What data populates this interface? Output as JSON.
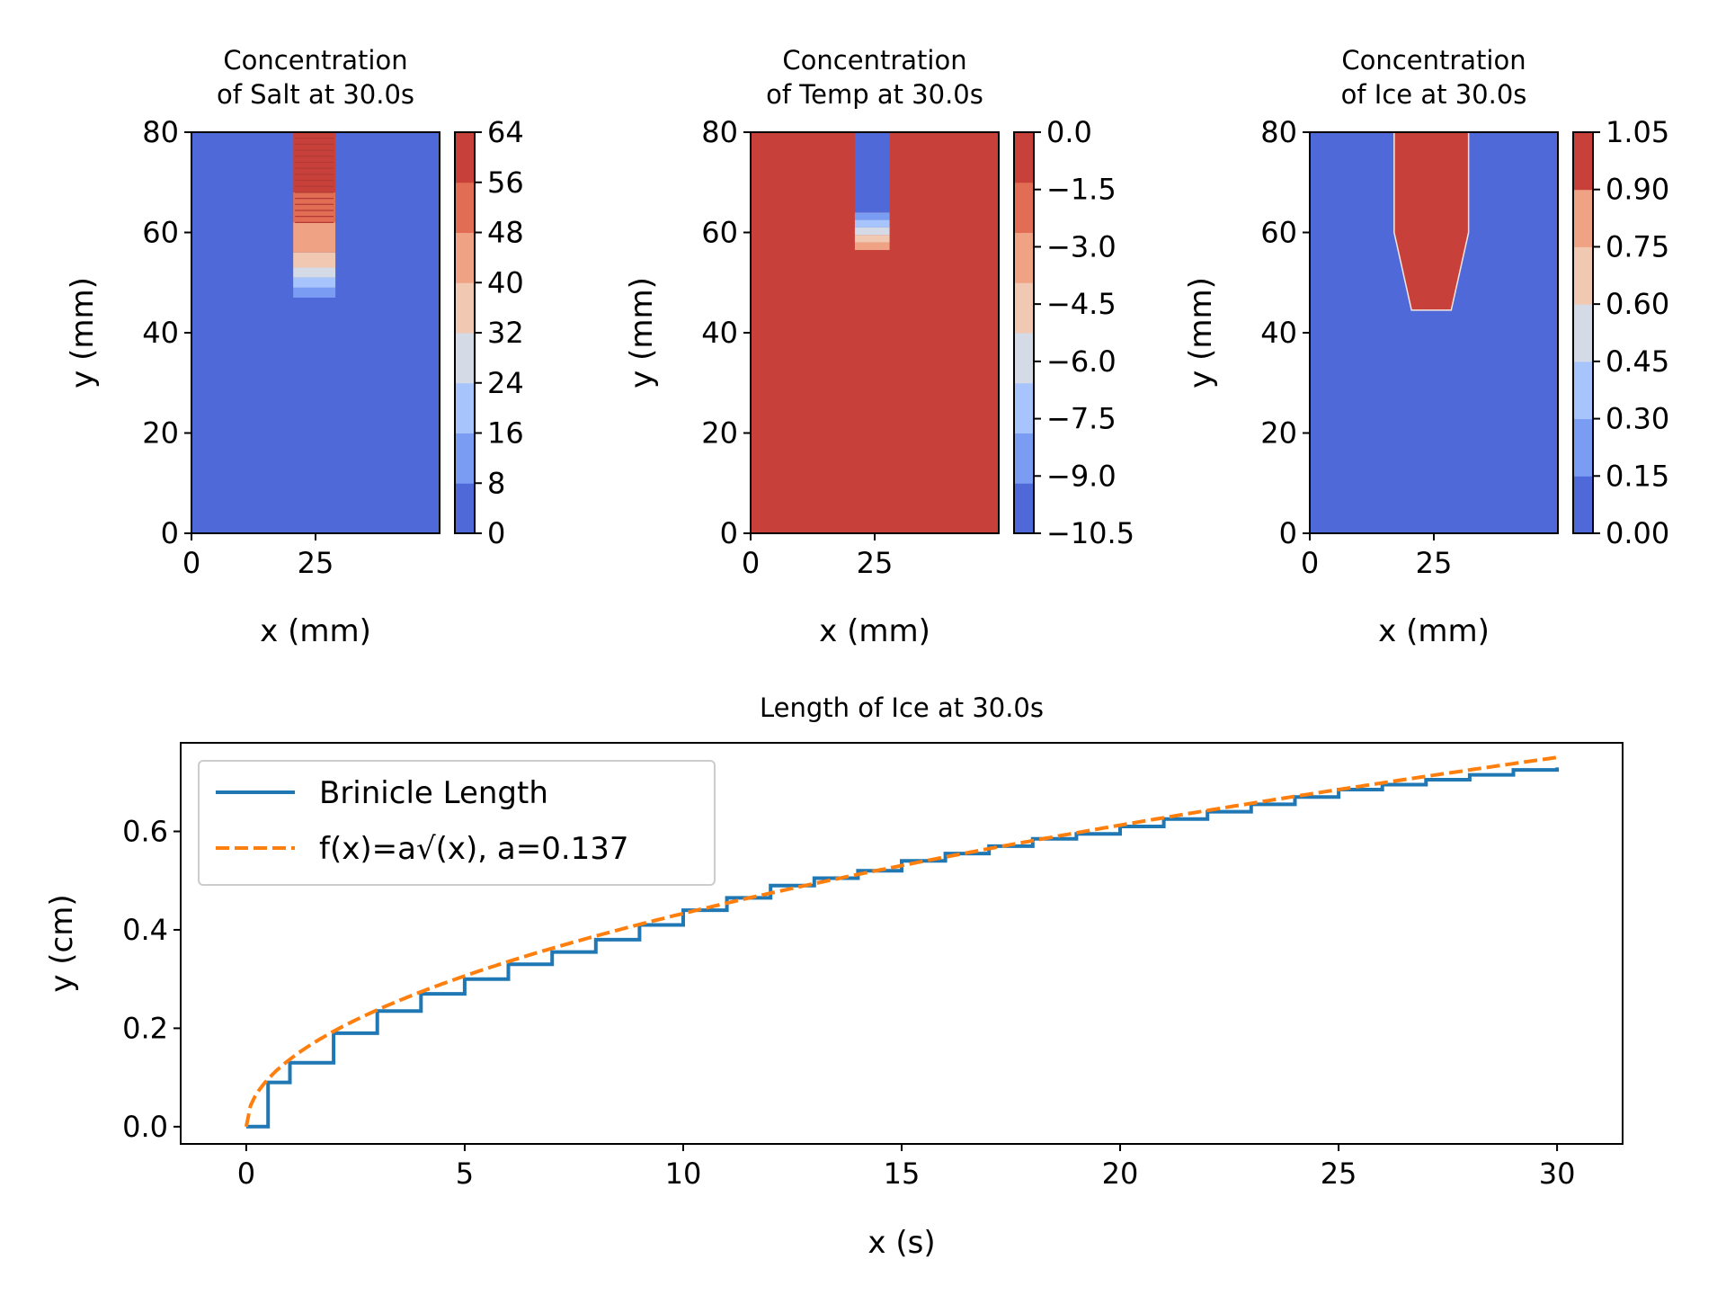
{
  "chart_data": [
    {
      "type": "heatmap",
      "title": "Concentration\nof Salt at 30.0s",
      "xlabel": "x (mm)",
      "ylabel": "y (mm)",
      "xlim": [
        0,
        50
      ],
      "ylim": [
        0,
        80
      ],
      "xticks": [
        0,
        25
      ],
      "yticks": [
        0,
        20,
        40,
        60,
        80
      ],
      "background_level": 0,
      "colorbar": {
        "levels": [
          0,
          8,
          16,
          24,
          32,
          40,
          48,
          56,
          64
        ],
        "tick_labels": [
          "0",
          "8",
          "16",
          "24",
          "32",
          "40",
          "48",
          "56",
          "64"
        ],
        "colors": [
          "#4f6ad8",
          "#7a9cf3",
          "#a7c5fc",
          "#d4dbe6",
          "#f1c9b3",
          "#f0a284",
          "#e26d55",
          "#c8403a"
        ]
      },
      "feature": {
        "description_level": "salt-rich plume",
        "x_range": [
          20.5,
          29.0
        ],
        "y_top": 80,
        "y_bottom": 47,
        "bands": [
          {
            "y_from": 47,
            "y_to": 49,
            "band": 1
          },
          {
            "y_from": 49,
            "y_to": 51,
            "band": 2
          },
          {
            "y_from": 51,
            "y_to": 53,
            "band": 3
          },
          {
            "y_from": 53,
            "y_to": 56,
            "band": 4
          },
          {
            "y_from": 56,
            "y_to": 62,
            "band": 5
          },
          {
            "y_from": 62,
            "y_to": 68,
            "band": 6
          },
          {
            "y_from": 68,
            "y_to": 80,
            "band": 7
          }
        ]
      }
    },
    {
      "type": "heatmap",
      "title": "Concentration\nof Temp at 30.0s",
      "xlabel": "x (mm)",
      "ylabel": "y (mm)",
      "xlim": [
        0,
        50
      ],
      "ylim": [
        0,
        80
      ],
      "xticks": [
        0,
        25
      ],
      "yticks": [
        0,
        20,
        40,
        60,
        80
      ],
      "background_level": 7,
      "colorbar": {
        "levels": [
          -10.5,
          -9.0,
          -7.5,
          -6.0,
          -4.5,
          -3.0,
          -1.5,
          0.0
        ],
        "tick_labels": [
          "−10.5",
          "−9.0",
          "−7.5",
          "−6.0",
          "−4.5",
          "−3.0",
          "−1.5",
          "0.0"
        ],
        "colors": [
          "#4f6ad8",
          "#7a9cf3",
          "#a7c5fc",
          "#d4dbe6",
          "#f1c9b3",
          "#f0a284",
          "#e26d55",
          "#c8403a"
        ]
      },
      "feature": {
        "x_range": [
          21.0,
          28.0
        ],
        "y_top": 80,
        "y_bottom": 56.5,
        "bands": [
          {
            "y_from": 56.5,
            "y_to": 58,
            "band": 5
          },
          {
            "y_from": 58,
            "y_to": 59.5,
            "band": 4
          },
          {
            "y_from": 59.5,
            "y_to": 61,
            "band": 3
          },
          {
            "y_from": 61,
            "y_to": 62.5,
            "band": 2
          },
          {
            "y_from": 62.5,
            "y_to": 64,
            "band": 1
          },
          {
            "y_from": 64,
            "y_to": 80,
            "band": 0
          }
        ]
      }
    },
    {
      "type": "heatmap",
      "title": "Concentration\nof Ice at 30.0s",
      "xlabel": "x (mm)",
      "ylabel": "y (mm)",
      "xlim": [
        0,
        50
      ],
      "ylim": [
        0,
        80
      ],
      "xticks": [
        0,
        25
      ],
      "yticks": [
        0,
        20,
        40,
        60,
        80
      ],
      "background_level": 0,
      "colorbar": {
        "levels": [
          0.0,
          0.15,
          0.3,
          0.45,
          0.6,
          0.75,
          0.9,
          1.05
        ],
        "tick_labels": [
          "0.00",
          "0.15",
          "0.30",
          "0.45",
          "0.60",
          "0.75",
          "0.90",
          "1.05"
        ],
        "colors": [
          "#4f6ad8",
          "#7a9cf3",
          "#a7c5fc",
          "#d4dbe6",
          "#f1c9b3",
          "#f0a284",
          "#c8403a"
        ]
      },
      "feature": {
        "outline": [
          [
            17,
            80
          ],
          [
            17,
            60
          ],
          [
            20.5,
            44.5
          ],
          [
            28.5,
            44.5
          ],
          [
            32,
            60
          ],
          [
            32,
            80
          ]
        ],
        "band": 6
      }
    },
    {
      "type": "line",
      "title": "Length of Ice at 30.0s",
      "xlabel": "x (s)",
      "ylabel": "y (cm)",
      "xlim": [
        -1.5,
        31.5
      ],
      "ylim": [
        -0.035,
        0.78
      ],
      "xticks": [
        0,
        5,
        10,
        15,
        20,
        25,
        30
      ],
      "yticks": [
        0.0,
        0.2,
        0.4,
        0.6
      ],
      "ytick_labels": [
        "0.0",
        "0.2",
        "0.4",
        "0.6"
      ],
      "legend_position": "top-left",
      "series": [
        {
          "name": "Brinicle Length",
          "color": "#1f77b4",
          "style": "solid",
          "x": [
            0,
            0.1,
            0.5,
            1,
            2,
            3,
            4,
            5,
            6,
            7,
            8,
            9,
            10,
            11,
            12,
            13,
            14,
            15,
            16,
            17,
            18,
            19,
            20,
            21,
            22,
            23,
            24,
            25,
            26,
            27,
            28,
            29,
            30
          ],
          "y": [
            0.0,
            0.0,
            0.09,
            0.13,
            0.19,
            0.235,
            0.27,
            0.3,
            0.33,
            0.355,
            0.38,
            0.41,
            0.44,
            0.465,
            0.49,
            0.505,
            0.52,
            0.54,
            0.555,
            0.57,
            0.585,
            0.595,
            0.61,
            0.625,
            0.64,
            0.655,
            0.67,
            0.685,
            0.695,
            0.705,
            0.715,
            0.725,
            0.73
          ]
        },
        {
          "name": "f(x)=a√(x), a=0.137",
          "color": "#ff7f0e",
          "style": "dashed",
          "a": 0.137
        }
      ]
    }
  ]
}
